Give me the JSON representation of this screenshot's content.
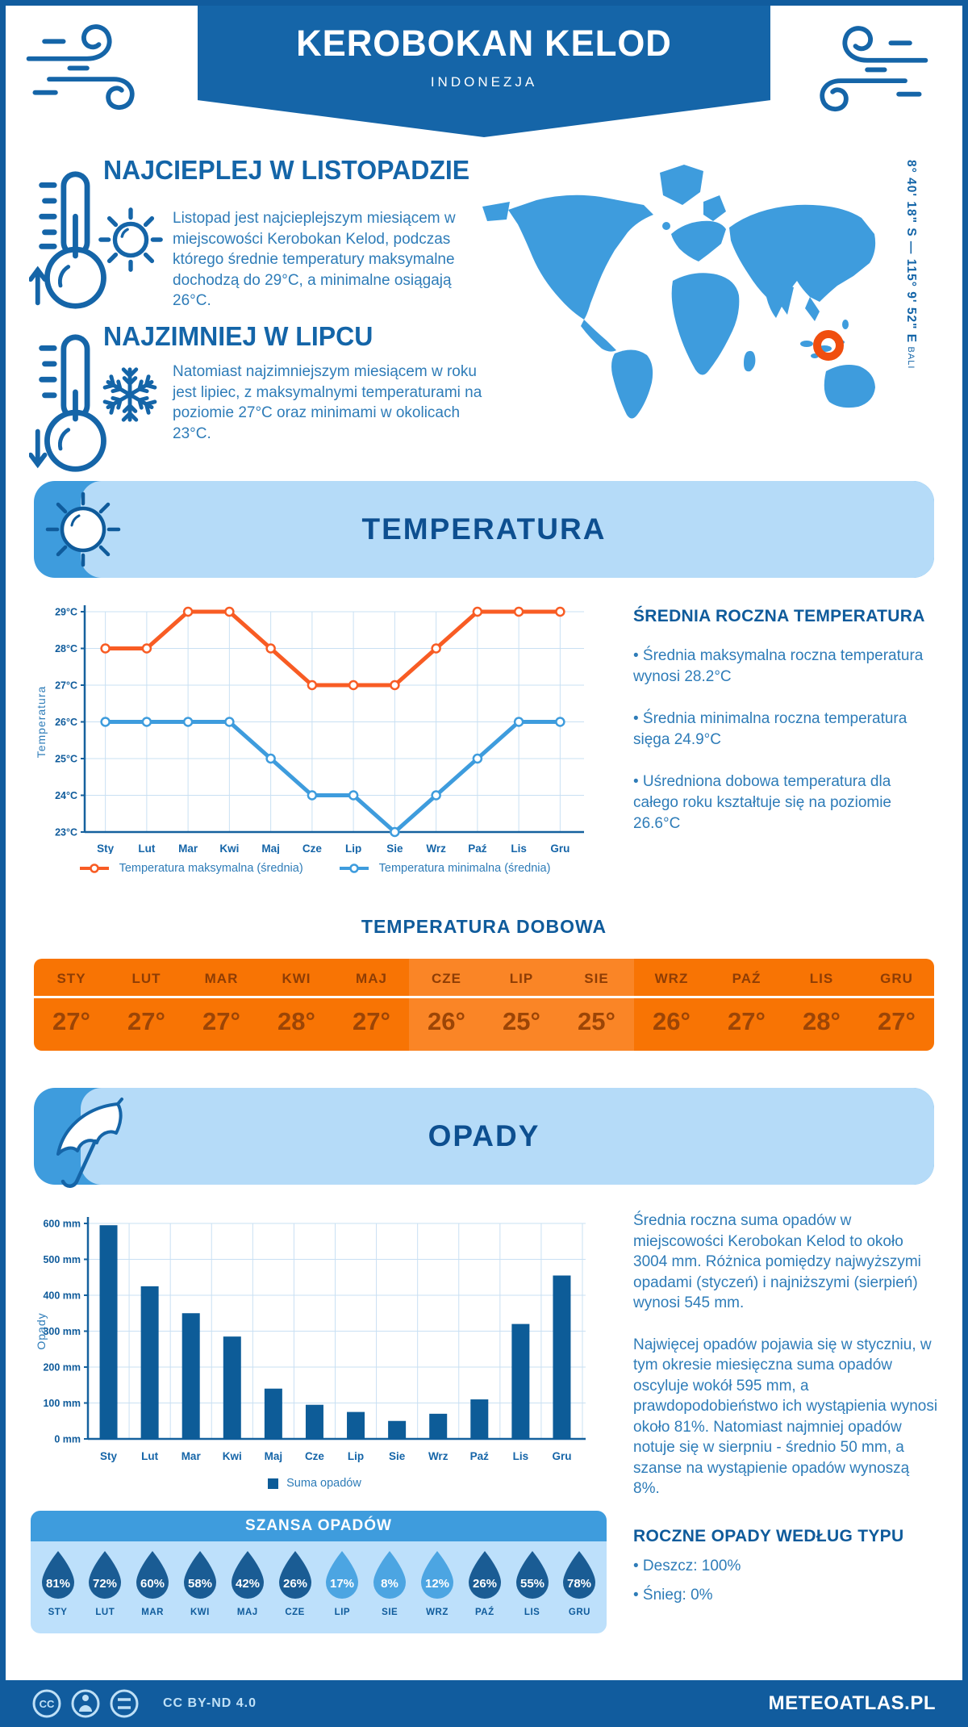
{
  "colors": {
    "primary": "#115C9E",
    "banner": "#1565A8",
    "heading": "#1465A8",
    "body_text": "#2E7CB8",
    "section_title": "#0D4F90",
    "light_banner": "#B5DBF8",
    "accent_blue": "#3E9CDD",
    "panel_light": "#BDE0FB",
    "grid": "#C9E0F3",
    "axis": "#15619E",
    "orange_line": "#F85C24",
    "blue_line": "#3E9CDD",
    "bar": "#0D5C98",
    "table_orange": "#F87404",
    "table_orange_light": "#FA8526",
    "table_header_text": "#8E3D05",
    "table_value_text": "#9C4506",
    "drop_dark": "#1A5C94",
    "drop_light": "#4CA5E2",
    "marker_ring": "#F04E0F"
  },
  "header": {
    "title": "KEROBOKAN KELOD",
    "subtitle": "INDONEZJA"
  },
  "location": {
    "coordinates": "8° 40' 18\" S — 115° 9' 52\" E",
    "region": "BALI"
  },
  "warmest": {
    "heading": "NAJCIEPLEJ W LISTOPADZIE",
    "body": "Listopad jest najcieplejszym miesiącem w miejscowości Kerobokan Kelod, podczas którego średnie temperatury maksymalne dochodzą do 29°C, a minimalne osiągają 26°C."
  },
  "coldest": {
    "heading": "NAJZIMNIEJ W LIPCU",
    "body": "Natomiast najzimniejszym miesiącem w roku jest lipiec, z maksymalnymi temperaturami na poziomie 27°C oraz minimami w okolicach 23°C."
  },
  "temperature_section": {
    "title": "TEMPERATURA"
  },
  "annual_temp": {
    "heading": "ŚREDNIA ROCZNA TEMPERATURA",
    "bullets": [
      "• Średnia maksymalna roczna temperatura wynosi 28.2°C",
      "• Średnia minimalna roczna temperatura sięga 24.9°C",
      "• Uśredniona dobowa temperatura dla całego roku kształtuje się na poziomie 26.6°C"
    ]
  },
  "daily_temp": {
    "heading": "TEMPERATURA DOBOWA",
    "months": [
      "STY",
      "LUT",
      "MAR",
      "KWI",
      "MAJ",
      "CZE",
      "LIP",
      "SIE",
      "WRZ",
      "PAŹ",
      "LIS",
      "GRU"
    ],
    "values": [
      "27°",
      "27°",
      "27°",
      "28°",
      "27°",
      "26°",
      "25°",
      "25°",
      "26°",
      "27°",
      "28°",
      "27°"
    ],
    "light_columns": [
      5,
      6,
      7
    ]
  },
  "precip_section": {
    "title": "OPADY",
    "paragraphs": [
      "Średnia roczna suma opadów w miejscowości Kerobokan Kelod to około 3004 mm. Różnica pomiędzy najwyższymi opadami (styczeń) i najniższymi (sierpień) wynosi 545 mm.",
      "Najwięcej opadów pojawia się w styczniu, w tym okresie miesięczna suma opadów oscyluje wokół 595 mm, a prawdopodobieństwo ich wystąpienia wynosi około 81%. Natomiast najmniej opadów notuje się w sierpniu - średnio 50 mm, a szanse na wystąpienie opadów wynoszą 8%."
    ],
    "type_heading": "ROCZNE OPADY WEDŁUG TYPU",
    "type_bullets": [
      "• Deszcz: 100%",
      "• Śnieg: 0%"
    ]
  },
  "rain_chance": {
    "heading": "SZANSA OPADÓW",
    "months": [
      "STY",
      "LUT",
      "MAR",
      "KWI",
      "MAJ",
      "CZE",
      "LIP",
      "SIE",
      "WRZ",
      "PAŹ",
      "LIS",
      "GRU"
    ],
    "values": [
      81,
      72,
      60,
      58,
      42,
      26,
      17,
      8,
      12,
      26,
      55,
      78
    ],
    "light_threshold": 20
  },
  "footer": {
    "license": "CC BY-ND 4.0",
    "brand": "METEOATLAS.PL"
  },
  "chart_data": [
    {
      "type": "line",
      "title": "TEMPERATURA",
      "categories": [
        "Sty",
        "Lut",
        "Mar",
        "Kwi",
        "Maj",
        "Cze",
        "Lip",
        "Sie",
        "Wrz",
        "Paź",
        "Lis",
        "Gru"
      ],
      "series": [
        {
          "name": "Temperatura maksymalna (średnia)",
          "color": "#F85C24",
          "values": [
            28,
            28,
            29,
            29,
            28,
            27,
            27,
            27,
            28,
            29,
            29,
            29
          ]
        },
        {
          "name": "Temperatura minimalna (średnia)",
          "color": "#3E9CDD",
          "values": [
            26,
            26,
            26,
            26,
            25,
            24,
            24,
            23,
            24,
            25,
            26,
            26
          ]
        }
      ],
      "xlabel": "",
      "ylabel": "Temperatura",
      "ylim": [
        23,
        29
      ],
      "ytick_step": 1,
      "ytick_suffix": "°C",
      "grid": true,
      "legend_position": "bottom"
    },
    {
      "type": "bar",
      "title": "OPADY",
      "categories": [
        "Sty",
        "Lut",
        "Mar",
        "Kwi",
        "Maj",
        "Cze",
        "Lip",
        "Sie",
        "Wrz",
        "Paź",
        "Lis",
        "Gru"
      ],
      "series": [
        {
          "name": "Suma opadów",
          "color": "#0D5C98",
          "values": [
            595,
            425,
            350,
            285,
            140,
            95,
            75,
            50,
            70,
            110,
            320,
            455
          ]
        }
      ],
      "xlabel": "",
      "ylabel": "Opady",
      "ylim": [
        0,
        600
      ],
      "ytick_step": 100,
      "ytick_suffix": " mm",
      "grid": true,
      "legend_position": "bottom"
    }
  ]
}
